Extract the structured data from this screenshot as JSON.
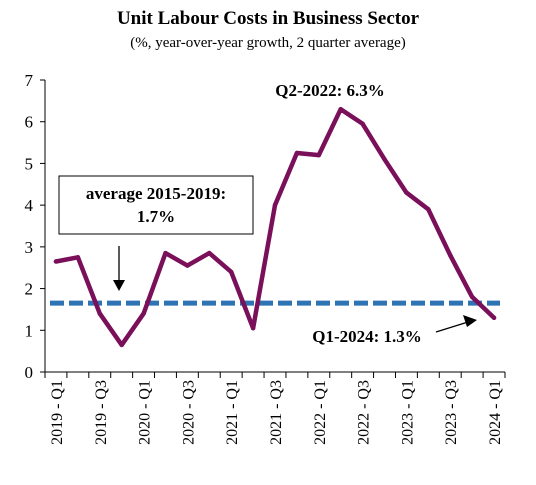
{
  "chart_data": {
    "type": "line",
    "title": "Unit Labour Costs in Business Sector",
    "subtitle": "(%, year-over-year growth, 2 quarter average)",
    "ylim": [
      0,
      7
    ],
    "yticks": [
      0,
      1,
      2,
      3,
      4,
      5,
      6,
      7
    ],
    "x_tick_labels": [
      "2019 - Q1",
      "2019 - Q3",
      "2020 - Q1",
      "2020 - Q3",
      "2021 - Q1",
      "2021 - Q3",
      "2022 - Q1",
      "2022 - Q3",
      "2023 - Q1",
      "2023 - Q3",
      "2024 - Q1"
    ],
    "grid": false,
    "legend": "none",
    "series": [
      {
        "color": "#7a0f5a",
        "x": [
          "2019-Q1",
          "2019-Q2",
          "2019-Q3",
          "2019-Q4",
          "2020-Q1",
          "2020-Q2",
          "2020-Q3",
          "2020-Q4",
          "2021-Q1",
          "2021-Q2",
          "2021-Q3",
          "2021-Q4",
          "2022-Q1",
          "2022-Q2",
          "2022-Q3",
          "2022-Q4",
          "2023-Q1",
          "2023-Q2",
          "2023-Q3",
          "2023-Q4",
          "2024-Q1"
        ],
        "values": [
          2.65,
          2.75,
          1.4,
          0.65,
          1.4,
          2.85,
          2.55,
          2.85,
          2.4,
          1.05,
          4.0,
          5.25,
          5.2,
          6.3,
          5.95,
          5.1,
          4.3,
          3.9,
          2.8,
          1.8,
          1.3
        ]
      }
    ],
    "reference_line": {
      "value": 1.65,
      "color": "#2e74b5",
      "style": "dashed"
    },
    "annotations": {
      "average_line1": "average 2015-2019:",
      "average_line2": "1.7%",
      "peak": "Q2-2022: 6.3%",
      "latest": "Q1-2024: 1.3%"
    }
  }
}
